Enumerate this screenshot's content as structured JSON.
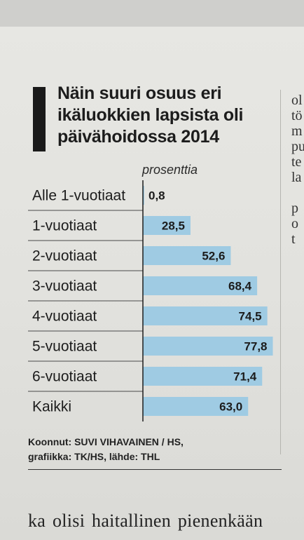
{
  "chart_data": {
    "type": "bar",
    "orientation": "horizontal",
    "title": "Näin suuri osuus eri ikäluokkien lapsista oli päivähoidossa 2014",
    "unit_label": "prosenttia",
    "categories": [
      "Alle 1-vuotiaat",
      "1-vuotiaat",
      "2-vuotiaat",
      "3-vuotiaat",
      "4-vuotiaat",
      "5-vuotiaat",
      "6-vuotiaat",
      "Kaikki"
    ],
    "values": [
      0.8,
      28.5,
      52.6,
      68.4,
      74.5,
      77.8,
      71.4,
      63.0
    ],
    "value_labels": [
      "0,8",
      "28,5",
      "52,6",
      "68,4",
      "74,5",
      "77,8",
      "71,4",
      "63,0"
    ],
    "bar_color": "#9fcbe3",
    "xlim": [
      0,
      78
    ]
  },
  "credits": {
    "line1": "Koonnut: SUVI VIHAVAINEN / HS,",
    "line2": "grafiikka: TK/HS, lähde: THL"
  },
  "side_column": [
    "ol",
    "tö",
    "m",
    "pu",
    "te",
    "la",
    "",
    "p",
    "o",
    "t"
  ],
  "body_text": "ka olisi haitallinen pienenkään"
}
